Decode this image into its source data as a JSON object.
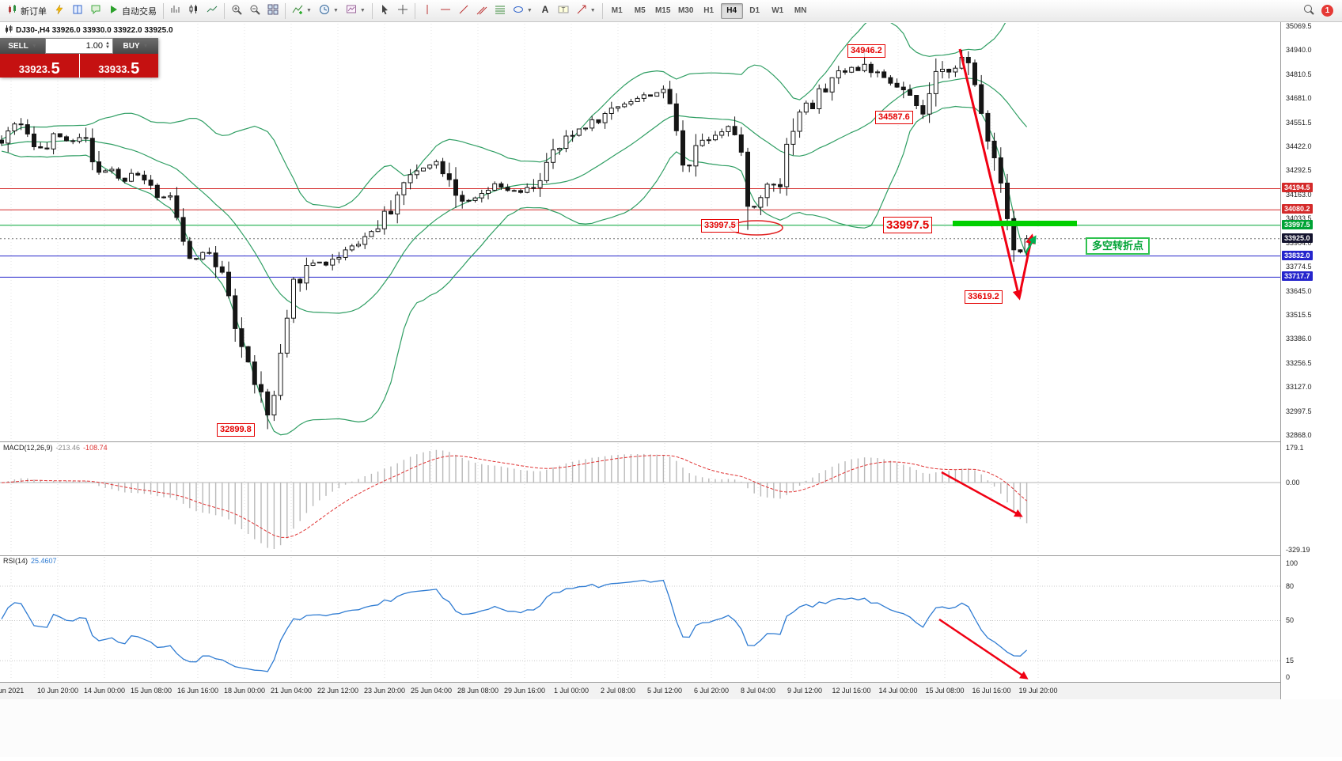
{
  "toolbar": {
    "new_order_label": "新订单",
    "auto_trading_label": "自动交易",
    "buttons": [
      {
        "n": "new-order-button",
        "i": "neworder",
        "t": "新订单"
      },
      {
        "n": "one-click-trading-button",
        "i": "lightning"
      },
      {
        "n": "market-watch-button",
        "i": "book"
      },
      {
        "n": "chat-button",
        "i": "chat"
      },
      {
        "n": "auto-trading-button",
        "i": "autotrade",
        "t": "自动交易"
      },
      {
        "sep": true
      },
      {
        "n": "bar-chart-button",
        "i": "barschart"
      },
      {
        "n": "candle-chart-button",
        "i": "candles"
      },
      {
        "n": "line-chart-button",
        "i": "linechart"
      },
      {
        "sep": true
      },
      {
        "n": "zoom-in-button",
        "i": "zoomin"
      },
      {
        "n": "zoom-out-button",
        "i": "zoomout"
      },
      {
        "n": "tile-windows-button",
        "i": "tile"
      },
      {
        "sep": true
      },
      {
        "n": "indicators-button",
        "i": "indicators",
        "c": true
      },
      {
        "n": "periods-button",
        "i": "periods",
        "c": true
      },
      {
        "n": "templates-button",
        "i": "template",
        "c": true
      },
      {
        "sep": true
      },
      {
        "n": "cursor-button",
        "i": "cursor"
      },
      {
        "n": "crosshair-button",
        "i": "crosshair"
      },
      {
        "sep": true
      },
      {
        "n": "vertical-line-button",
        "i": "vline"
      },
      {
        "n": "horizontal-line-button",
        "i": "hline"
      },
      {
        "n": "trendline-button",
        "i": "trendline"
      },
      {
        "n": "channel-button",
        "i": "channel"
      },
      {
        "n": "fibonacci-button",
        "i": "fibo"
      },
      {
        "n": "shapes-button",
        "i": "shapes",
        "c": true
      },
      {
        "n": "text-button",
        "i": "texta"
      },
      {
        "n": "label-button",
        "i": "labeltool"
      },
      {
        "n": "arrows-button",
        "i": "arrowstool",
        "c": true
      },
      {
        "sep": true
      }
    ],
    "timeframes": [
      "M1",
      "M5",
      "M15",
      "M30",
      "H1",
      "H4",
      "D1",
      "W1",
      "MN"
    ],
    "active_timeframe": "H4",
    "notification_count": "1"
  },
  "chart": {
    "symbol_header": "DJ30-,H4  33926.0 33930.0 33922.0 33925.0",
    "trade_panel": {
      "sell_label": "SELL",
      "buy_label": "BUY",
      "volume": "1.00",
      "sell_price_main": "33923.",
      "sell_price_big": "5",
      "buy_price_main": "33933.",
      "buy_price_big": "5"
    },
    "annotations": {
      "high1": "34946.2",
      "high2": "34587.6",
      "level_circled": "33997.5",
      "level_big": "33997.5",
      "swing_low": "33619.2",
      "bottom_low": "32899.8",
      "turning_point": "多空转折点"
    },
    "axis_marks": [
      {
        "label": "34194.5",
        "price": 34194.5,
        "color": "#d42a2a"
      },
      {
        "label": "34080.2",
        "price": 34080.2,
        "color": "#d42a2a"
      },
      {
        "label": "33997.5",
        "price": 33997.5,
        "color": "#00a335"
      },
      {
        "label": "33925.0",
        "price": 33925.0,
        "color": "#14142e"
      },
      {
        "label": "33832.0",
        "price": 33832.0,
        "color": "#2525cc"
      },
      {
        "label": "33717.7",
        "price": 33717.7,
        "color": "#2525cc"
      }
    ],
    "price_ticks": [
      "35069.5",
      "34940.0",
      "34810.5",
      "34681.0",
      "34551.5",
      "34422.0",
      "34292.5",
      "34163.0",
      "34033.5",
      "33904.0",
      "33774.5",
      "33645.0",
      "33515.5",
      "33386.0",
      "33256.5",
      "33127.0",
      "32997.5",
      "32868.0"
    ],
    "time_ticks": [
      "un 2021",
      "10 Jun 20:00",
      "14 Jun 00:00",
      "15 Jun 08:00",
      "16 Jun 16:00",
      "18 Jun 00:00",
      "21 Jun 04:00",
      "22 Jun 12:00",
      "23 Jun 20:00",
      "25 Jun 04:00",
      "28 Jun 08:00",
      "29 Jun 16:00",
      "1 Jul 00:00",
      "2 Jul 08:00",
      "5 Jul 12:00",
      "6 Jul 20:00",
      "8 Jul 04:00",
      "9 Jul 12:00",
      "12 Jul 16:00",
      "14 Jul 00:00",
      "15 Jul 08:00",
      "16 Jul 16:00",
      "19 Jul 20:00"
    ]
  },
  "macd": {
    "label": "MACD(12,26,9)",
    "value_main": "-213.46",
    "value_signal": "-108.74",
    "ticks": [
      "179.1",
      "0.00",
      "-329.19"
    ]
  },
  "rsi": {
    "label": "RSI(14)",
    "value": "25.4607",
    "ticks": [
      "100",
      "80",
      "50",
      "15",
      "0"
    ],
    "levels": [
      80,
      50,
      15
    ]
  },
  "chart_data": {
    "type": "candlestick",
    "symbol": "DJ30-",
    "timeframe": "H4",
    "ohlc_header": {
      "open": "33926.0",
      "high": "33930.0",
      "low": "33922.0",
      "close": "33925.0"
    },
    "price_range": {
      "top": 35069.5,
      "bottom": 32857.5
    },
    "levels": {
      "resistance": [
        34194.5,
        34080.2
      ],
      "pivot": 33997.5,
      "support": [
        33832.0,
        33717.7
      ],
      "current": 33925.0
    },
    "extremes": {
      "high": 34946.2,
      "secondary_high": 34587.6,
      "swing_low": 33619.2,
      "low": 32899.8
    },
    "indicators": [
      "Bollinger Bands(20,2)",
      "MACD(12,26,9)",
      "RSI(14)"
    ],
    "price_path": [
      [
        0,
        34430
      ],
      [
        20,
        34560
      ],
      [
        40,
        34470
      ],
      [
        55,
        34380
      ],
      [
        70,
        34480
      ],
      [
        90,
        34450
      ],
      [
        110,
        34500
      ],
      [
        125,
        34250
      ],
      [
        140,
        34320
      ],
      [
        155,
        34230
      ],
      [
        170,
        34290
      ],
      [
        185,
        34240
      ],
      [
        200,
        34120
      ],
      [
        215,
        34180
      ],
      [
        230,
        33960
      ],
      [
        245,
        33800
      ],
      [
        260,
        33870
      ],
      [
        272,
        33740
      ],
      [
        285,
        33690
      ],
      [
        295,
        33480
      ],
      [
        305,
        33350
      ],
      [
        315,
        33220
      ],
      [
        325,
        33150
      ],
      [
        335,
        33000
      ],
      [
        342,
        32940
      ],
      [
        350,
        33180
      ],
      [
        360,
        33380
      ],
      [
        372,
        33700
      ],
      [
        385,
        33760
      ],
      [
        400,
        33810
      ],
      [
        415,
        33780
      ],
      [
        430,
        33850
      ],
      [
        445,
        33890
      ],
      [
        460,
        33930
      ],
      [
        475,
        33990
      ],
      [
        490,
        34060
      ],
      [
        505,
        34200
      ],
      [
        520,
        34260
      ],
      [
        535,
        34320
      ],
      [
        550,
        34340
      ],
      [
        565,
        34290
      ],
      [
        580,
        34150
      ],
      [
        595,
        34120
      ],
      [
        610,
        34160
      ],
      [
        625,
        34210
      ],
      [
        640,
        34190
      ],
      [
        655,
        34170
      ],
      [
        670,
        34190
      ],
      [
        685,
        34270
      ],
      [
        700,
        34380
      ],
      [
        715,
        34450
      ],
      [
        730,
        34510
      ],
      [
        745,
        34550
      ],
      [
        760,
        34570
      ],
      [
        775,
        34630
      ],
      [
        790,
        34660
      ],
      [
        805,
        34680
      ],
      [
        820,
        34700
      ],
      [
        835,
        34720
      ],
      [
        848,
        34660
      ],
      [
        858,
        34400
      ],
      [
        868,
        34300
      ],
      [
        880,
        34440
      ],
      [
        895,
        34470
      ],
      [
        910,
        34510
      ],
      [
        922,
        34530
      ],
      [
        933,
        34450
      ],
      [
        944,
        34150
      ],
      [
        955,
        34080
      ],
      [
        965,
        34190
      ],
      [
        975,
        34250
      ],
      [
        985,
        34210
      ],
      [
        995,
        34440
      ],
      [
        1005,
        34570
      ],
      [
        1015,
        34660
      ],
      [
        1025,
        34620
      ],
      [
        1035,
        34700
      ],
      [
        1045,
        34740
      ],
      [
        1055,
        34800
      ],
      [
        1065,
        34830
      ],
      [
        1075,
        34850
      ],
      [
        1085,
        34830
      ],
      [
        1095,
        34870
      ],
      [
        1105,
        34810
      ],
      [
        1115,
        34780
      ],
      [
        1125,
        34760
      ],
      [
        1135,
        34740
      ],
      [
        1145,
        34700
      ],
      [
        1155,
        34640
      ],
      [
        1165,
        34580
      ],
      [
        1175,
        34700
      ],
      [
        1185,
        34800
      ],
      [
        1195,
        34830
      ],
      [
        1205,
        34850
      ],
      [
        1215,
        34900
      ],
      [
        1225,
        34830
      ],
      [
        1235,
        34700
      ],
      [
        1245,
        34530
      ],
      [
        1255,
        34400
      ],
      [
        1265,
        34230
      ],
      [
        1273,
        34080
      ],
      [
        1281,
        33890
      ],
      [
        1289,
        33850
      ],
      [
        1296,
        33925
      ]
    ]
  }
}
